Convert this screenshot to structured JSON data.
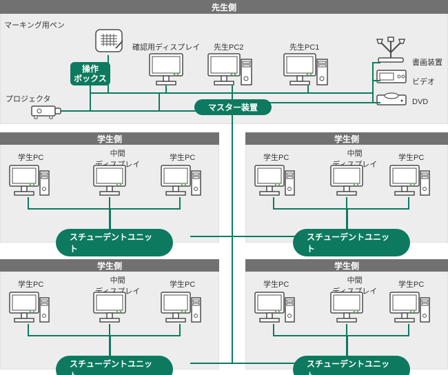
{
  "type": "network-diagram",
  "colors": {
    "panel_bg": "#ededed",
    "header_bg": "#717171",
    "accent": "#0d7a5f",
    "text": "#333333",
    "icon": "#4b4b4b",
    "background": "#ffffff"
  },
  "teacher_panel": {
    "header": "先生側",
    "marking_pen": "マーキング用ペン",
    "confirm_display": "確認用ディスプレイ",
    "teacher_pc2": "先生PC2",
    "teacher_pc1": "先生PC1",
    "doc_camera": "書画装置",
    "video": "ビデオ",
    "dvd": "DVD",
    "control_box": "操作\nボックス",
    "projector": "プロジェクタ",
    "master": "マスター装置"
  },
  "student_panel": {
    "header": "学生側",
    "student_pc": "学生PC",
    "mid_display": "中間\nディスプレイ",
    "unit": "スチューデントユニット"
  }
}
